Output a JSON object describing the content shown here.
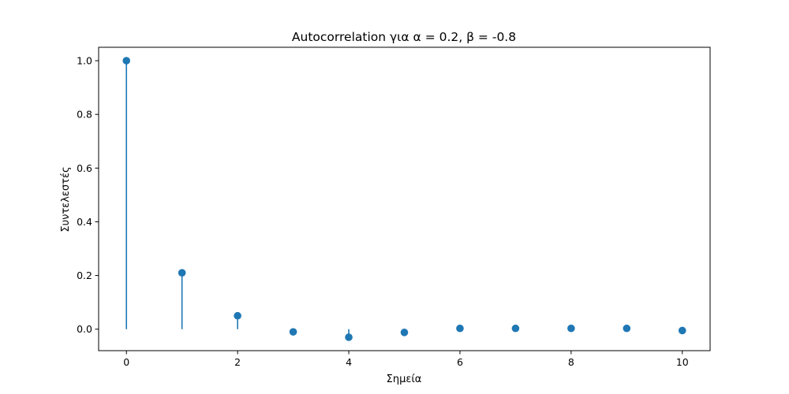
{
  "chart_data": {
    "type": "stem",
    "title": "Autocorrelation για α = 0.2, β = -0.8",
    "xlabel": "Σημεία",
    "ylabel": "Συντελεστές",
    "x": [
      0,
      1,
      2,
      3,
      4,
      5,
      6,
      7,
      8,
      9,
      10
    ],
    "values": [
      1.0,
      0.21,
      0.05,
      -0.01,
      -0.03,
      -0.012,
      0.003,
      0.003,
      0.003,
      0.003,
      -0.005
    ],
    "xlim": [
      -0.5,
      10.5
    ],
    "ylim": [
      -0.08,
      1.05
    ],
    "xticks": [
      0,
      2,
      4,
      6,
      8,
      10
    ],
    "yticks": [
      0.0,
      0.2,
      0.4,
      0.6,
      0.8,
      1.0
    ],
    "xtick_labels": [
      "0",
      "2",
      "4",
      "6",
      "8",
      "10"
    ],
    "ytick_labels": [
      "0.0",
      "0.2",
      "0.4",
      "0.6",
      "0.8",
      "1.0"
    ],
    "grid": false,
    "color": "#1f77b4"
  }
}
